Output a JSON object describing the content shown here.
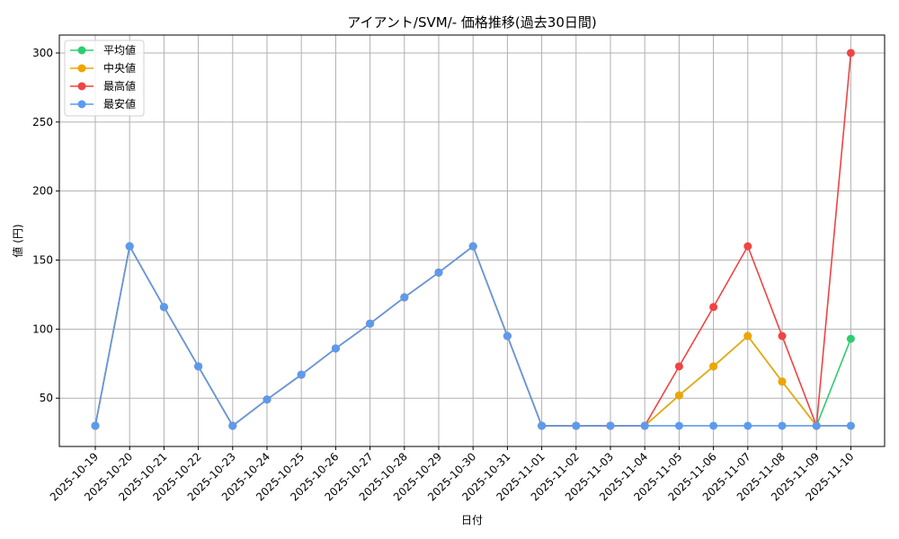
{
  "chart_data": {
    "type": "line",
    "title": "アイアント/SVM/- 価格推移(過去30日間)",
    "xlabel": "日付",
    "ylabel": "値 (円)",
    "x": [
      "2025-10-19",
      "2025-10-20",
      "2025-10-21",
      "2025-10-22",
      "2025-10-23",
      "2025-10-24",
      "2025-10-25",
      "2025-10-26",
      "2025-10-27",
      "2025-10-28",
      "2025-10-29",
      "2025-10-30",
      "2025-10-31",
      "2025-11-01",
      "2025-11-02",
      "2025-11-03",
      "2025-11-04",
      "2025-11-05",
      "2025-11-06",
      "2025-11-07",
      "2025-11-08",
      "2025-11-09",
      "2025-11-10"
    ],
    "ylim": [
      15,
      313
    ],
    "yticks": [
      50,
      100,
      150,
      200,
      250,
      300
    ],
    "grid": true,
    "legend_position": "top-left",
    "series": [
      {
        "name": "平均値",
        "color": "#2ecc71",
        "values": [
          30,
          160,
          116,
          73,
          30,
          49,
          67,
          86,
          104,
          123,
          141,
          160,
          95,
          30,
          30,
          30,
          30,
          52,
          73,
          95,
          62,
          30,
          93
        ]
      },
      {
        "name": "中央値",
        "color": "#f0a500",
        "values": [
          30,
          160,
          116,
          73,
          30,
          49,
          67,
          86,
          104,
          123,
          141,
          160,
          95,
          30,
          30,
          30,
          30,
          52,
          73,
          95,
          62,
          30,
          30
        ]
      },
      {
        "name": "最高値",
        "color": "#ef4444",
        "values": [
          30,
          160,
          116,
          73,
          30,
          49,
          67,
          86,
          104,
          123,
          141,
          160,
          95,
          30,
          30,
          30,
          30,
          73,
          116,
          160,
          95,
          30,
          300
        ]
      },
      {
        "name": "最安値",
        "color": "#5b9bef",
        "values": [
          30,
          160,
          116,
          73,
          30,
          49,
          67,
          86,
          104,
          123,
          141,
          160,
          95,
          30,
          30,
          30,
          30,
          30,
          30,
          30,
          30,
          30,
          30
        ]
      }
    ]
  }
}
